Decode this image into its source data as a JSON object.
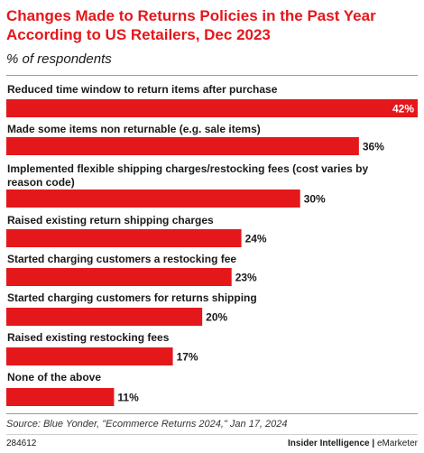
{
  "chart_data": {
    "type": "bar",
    "orientation": "horizontal",
    "title": "Changes Made to Returns Policies in the Past Year According to US Retailers, Dec 2023",
    "subtitle": "% of respondents",
    "categories": [
      "Reduced time window to return items after purchase",
      "Made some items non returnable (e.g. sale items)",
      "Implemented flexible shipping charges/restocking fees (cost varies by reason code)",
      "Raised existing return shipping charges",
      "Started charging customers a restocking fee",
      "Started charging customers for returns shipping",
      "Raised existing restocking fees",
      "None of the above"
    ],
    "category_lines": [
      [
        "Reduced time window to return items after purchase"
      ],
      [
        "Made some items non returnable (e.g. sale items)"
      ],
      [
        "Implemented flexible shipping charges/restocking fees (cost varies by",
        "reason code)"
      ],
      [
        "Raised existing return shipping charges"
      ],
      [
        "Started charging customers a restocking fee"
      ],
      [
        "Started charging customers for returns shipping"
      ],
      [
        "Raised existing restocking fees"
      ],
      [
        "None of the above"
      ]
    ],
    "values": [
      42,
      36,
      30,
      24,
      23,
      20,
      17,
      11
    ],
    "value_labels": [
      "42%",
      "36%",
      "30%",
      "24%",
      "23%",
      "20%",
      "17%",
      "11%"
    ],
    "unit": "%",
    "xlim": [
      0,
      42
    ],
    "grid": false,
    "legend": "none",
    "bar_color": "#e4171b"
  },
  "source": "Source: Blue Yonder, \"Ecommerce Returns 2024,\" Jan 17, 2024",
  "chart_id": "284612",
  "brand": {
    "left": "Insider Intelligence",
    "separator": " | ",
    "right": "eMarketer"
  }
}
